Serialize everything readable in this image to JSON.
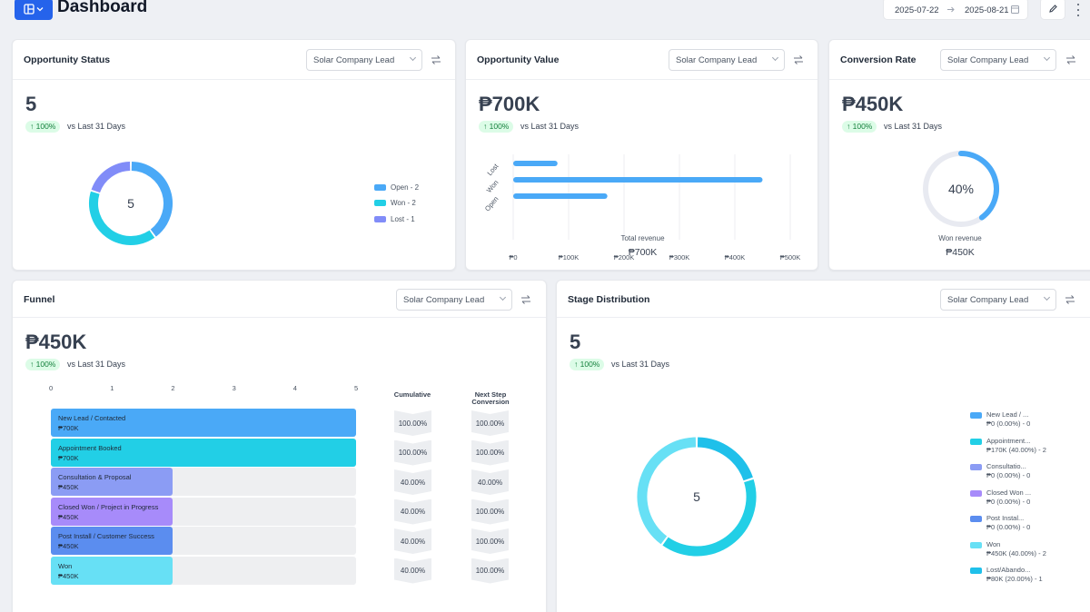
{
  "header": {
    "title": "Dashboard",
    "date_start": "2025-07-22",
    "date_end": "2025-08-21",
    "icons": {
      "layout": "layout-grid-icon",
      "calendar": "calendar-icon",
      "edit": "pencil-icon",
      "more": "kebab-icon",
      "arrow": "arrow-right-icon"
    }
  },
  "colors": {
    "primary": "#2563eb",
    "open": "#4aa9f7",
    "won": "#22cfe6",
    "lost": "#818cf8",
    "ring_track": "#e8eaf1",
    "conversion": "#4aa9f7"
  },
  "opportunity_status": {
    "title": "Opportunity Status",
    "pipeline": "Solar Company Lead",
    "value": "5",
    "change": "↑ 100%",
    "compare": "vs Last 31 Days",
    "center": "5",
    "legend": [
      "Open - 2",
      "Won - 2",
      "Lost - 1"
    ]
  },
  "opportunity_value": {
    "title": "Opportunity Value",
    "pipeline": "Solar Company Lead",
    "value": "₱700K",
    "change": "↑ 100%",
    "compare": "vs Last 31 Days",
    "caption": "Total revenue",
    "caption_value": "₱700K"
  },
  "conversion_rate": {
    "title": "Conversion Rate",
    "pipeline": "Solar Company Lead",
    "value": "₱450K",
    "change": "↑ 100%",
    "compare": "vs Last 31 Days",
    "gauge_label": "40%",
    "gauge_fraction": 0.4,
    "caption": "Won revenue",
    "caption_value": "₱450K"
  },
  "funnel": {
    "title": "Funnel",
    "pipeline": "Solar Company Lead",
    "value": "₱450K",
    "change": "↑ 100%",
    "compare": "vs Last 31 Days",
    "ticks": [
      "0",
      "1",
      "2",
      "3",
      "4",
      "5"
    ],
    "cumulative_header": "Cumulative",
    "next_step_header_1": "Next Step",
    "next_step_header_2": "Conversion",
    "stages": [
      {
        "name": "New Lead / Contacted",
        "amount": "₱700K",
        "count": 5,
        "color": "#4aa9f7",
        "cumulative": "100.00%",
        "next": "100.00%"
      },
      {
        "name": "Appointment Booked",
        "amount": "₱700K",
        "count": 5,
        "color": "#22cfe6",
        "cumulative": "100.00%",
        "next": "100.00%"
      },
      {
        "name": "Consultation & Proposal",
        "amount": "₱450K",
        "count": 2,
        "color": "#8b9cf4",
        "cumulative": "40.00%",
        "next": "40.00%"
      },
      {
        "name": "Closed Won / Project in Progress",
        "amount": "₱450K",
        "count": 2,
        "color": "#a78bfa",
        "cumulative": "40.00%",
        "next": "100.00%"
      },
      {
        "name": "Post Install / Customer Success",
        "amount": "₱450K",
        "count": 2,
        "color": "#5b8def",
        "cumulative": "40.00%",
        "next": "100.00%"
      },
      {
        "name": "Won",
        "amount": "₱450K",
        "count": 2,
        "color": "#67e0f5",
        "cumulative": "40.00%",
        "next": "100.00%"
      }
    ]
  },
  "stage_distribution": {
    "title": "Stage Distribution",
    "pipeline": "Solar Company Lead",
    "value": "5",
    "change": "↑ 100%",
    "compare": "vs Last 31 Days",
    "center": "5",
    "legend": [
      {
        "line1": "New Lead / ...",
        "line2": "₱0 (0.00%) - 0",
        "color": "#4aa9f7"
      },
      {
        "line1": "Appointment...",
        "line2": "₱170K (40.00%) - 2",
        "color": "#22cfe6"
      },
      {
        "line1": "Consultatio...",
        "line2": "₱0 (0.00%) - 0",
        "color": "#8b9cf4"
      },
      {
        "line1": "Closed Won ...",
        "line2": "₱0 (0.00%) - 0",
        "color": "#a78bfa"
      },
      {
        "line1": "Post Instal...",
        "line2": "₱0 (0.00%) - 0",
        "color": "#5b8def"
      },
      {
        "line1": "Won",
        "line2": "₱450K (40.00%) - 2",
        "color": "#67e0f5"
      },
      {
        "line1": "Lost/Abando...",
        "line2": "₱80K (20.00%) - 1",
        "color": "#1fc0ea"
      }
    ]
  },
  "chart_data": [
    {
      "type": "pie",
      "title": "Opportunity Status",
      "categories": [
        "Open",
        "Won",
        "Lost"
      ],
      "values": [
        2,
        2,
        1
      ],
      "colors": [
        "#4aa9f7",
        "#22cfe6",
        "#818cf8"
      ]
    },
    {
      "type": "bar",
      "title": "Opportunity Value",
      "orientation": "horizontal",
      "categories": [
        "Lost",
        "Won",
        "Open"
      ],
      "values": [
        80000,
        450000,
        170000
      ],
      "xlabel": "Total revenue",
      "xlim": [
        0,
        500000
      ],
      "xticks": [
        "₱0",
        "₱100K",
        "₱200K",
        "₱300K",
        "₱400K",
        "₱500K"
      ],
      "grid": true
    },
    {
      "type": "pie",
      "title": "Stage Distribution",
      "categories": [
        "Lost/Abando...",
        "Appointment...",
        "Won"
      ],
      "values": [
        1,
        2,
        2
      ],
      "colors": [
        "#1fc0ea",
        "#22cfe6",
        "#67e0f5"
      ]
    }
  ]
}
